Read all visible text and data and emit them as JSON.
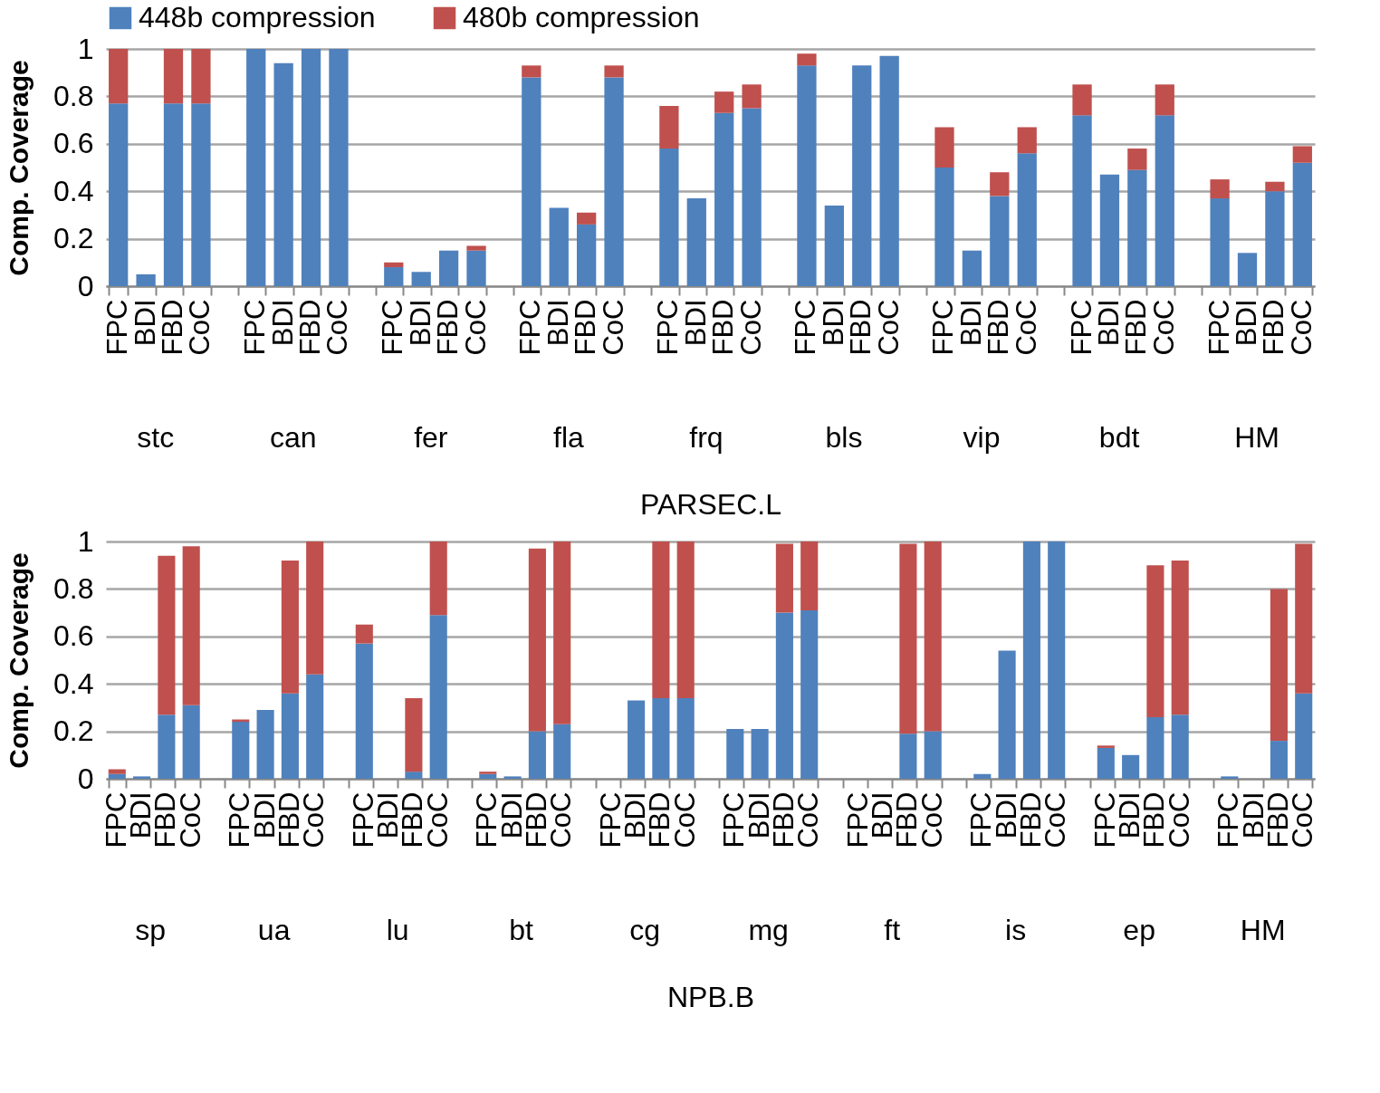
{
  "chart_data": [
    {
      "type": "bar",
      "stacked": true,
      "xlabel": "PARSEC.L",
      "ylabel": "Comp. Coverage",
      "legend": "top",
      "grid": "y",
      "ylim": [
        0,
        1
      ],
      "yticks": [
        0,
        0.2,
        0.4,
        0.6,
        0.8,
        1
      ],
      "annotations": [
        "stc",
        "can",
        "fer",
        "fla",
        "frq",
        "bls",
        "vip",
        "bdt",
        "HM"
      ],
      "categories": [
        "FPC",
        "BDI",
        "FBD",
        "CoC",
        null,
        "FPC",
        "BDI",
        "FBD",
        "CoC",
        null,
        "FPC",
        "BDI",
        "FBD",
        "CoC",
        null,
        "FPC",
        "BDI",
        "FBD",
        "CoC",
        null,
        "FPC",
        "BDI",
        "FBD",
        "CoC",
        null,
        "FPC",
        "BDI",
        "FBD",
        "CoC",
        null,
        "FPC",
        "BDI",
        "FBD",
        "CoC",
        null,
        "FPC",
        "BDI",
        "FBD",
        "CoC",
        null,
        "FPC",
        "BDI",
        "FBD",
        "CoC"
      ],
      "series": [
        {
          "name": "448b compression",
          "color": "#4f81bd",
          "values": [
            0.77,
            0.05,
            0.77,
            0.77,
            null,
            1,
            0.94,
            1,
            1,
            null,
            0.08,
            0.06,
            0.15,
            0.15,
            null,
            0.88,
            0.33,
            0.26,
            0.88,
            null,
            0.58,
            0.37,
            0.73,
            0.75,
            null,
            0.93,
            0.34,
            0.93,
            0.97,
            null,
            0.5,
            0.15,
            0.38,
            0.56,
            null,
            0.72,
            0.47,
            0.49,
            0.72,
            null,
            0.37,
            0.14,
            0.4,
            0.52
          ]
        },
        {
          "name": "480b compression",
          "color": "#c0504d",
          "values": [
            0.23,
            0,
            0.23,
            0.23,
            null,
            0,
            0,
            0,
            0,
            null,
            0.02,
            0,
            0,
            0.02,
            null,
            0.05,
            0,
            0.05,
            0.05,
            null,
            0.18,
            0,
            0.09,
            0.1,
            null,
            0.05,
            0,
            0,
            0,
            null,
            0.17,
            0,
            0.1,
            0.11,
            null,
            0.13,
            0,
            0.09,
            0.13,
            null,
            0.08,
            0,
            0.04,
            0.07
          ]
        }
      ]
    },
    {
      "type": "bar",
      "stacked": true,
      "xlabel": "NPB.B",
      "ylabel": "Comp. Coverage",
      "grid": "y",
      "ylim": [
        0,
        1
      ],
      "yticks": [
        0,
        0.2,
        0.4,
        0.6,
        0.8,
        1
      ],
      "annotations": [
        "sp",
        "ua",
        "lu",
        "bt",
        "cg",
        "mg",
        "ft",
        "is",
        "ep",
        "HM"
      ],
      "categories": [
        "FPC",
        "BDI",
        "FBD",
        "CoC",
        null,
        "FPC",
        "BDI",
        "FBD",
        "CoC",
        null,
        "FPC",
        "BDI",
        "FBD",
        "CoC",
        null,
        "FPC",
        "BDI",
        "FBD",
        "CoC",
        null,
        "FPC",
        "BDI",
        "FBD",
        "CoC",
        null,
        "FPC",
        "BDI",
        "FBD",
        "CoC",
        null,
        "FPC",
        "BDI",
        "FBD",
        "CoC",
        null,
        "FPC",
        "BDI",
        "FBD",
        "CoC",
        null,
        "FPC",
        "BDI",
        "FBD",
        "CoC",
        null,
        "FPC",
        "BDI",
        "FBD",
        "CoC"
      ],
      "series": [
        {
          "name": "448b compression",
          "color": "#4f81bd",
          "values": [
            0.02,
            0.01,
            0.27,
            0.31,
            null,
            0.24,
            0.29,
            0.36,
            0.44,
            null,
            0.57,
            0,
            0.03,
            0.69,
            null,
            0.02,
            0.01,
            0.2,
            0.23,
            null,
            0,
            0.33,
            0.34,
            0.34,
            null,
            0.21,
            0.21,
            0.7,
            0.71,
            null,
            0,
            0,
            0.19,
            0.2,
            null,
            0.02,
            0.54,
            1,
            1,
            null,
            0.13,
            0.1,
            0.26,
            0.27,
            null,
            0.01,
            0,
            0.16,
            0.36
          ]
        },
        {
          "name": "480b compression",
          "color": "#c0504d",
          "values": [
            0.02,
            0,
            0.67,
            0.67,
            null,
            0.01,
            0,
            0.56,
            0.56,
            null,
            0.08,
            0,
            0.31,
            0.31,
            null,
            0.01,
            0,
            0.77,
            0.77,
            null,
            0,
            0,
            0.66,
            0.66,
            null,
            0,
            0,
            0.29,
            0.29,
            null,
            0,
            0,
            0.8,
            0.8,
            null,
            0,
            0,
            0,
            0,
            null,
            0.01,
            0,
            0.64,
            0.65,
            null,
            0,
            0,
            0.64,
            0.63
          ]
        }
      ]
    }
  ]
}
